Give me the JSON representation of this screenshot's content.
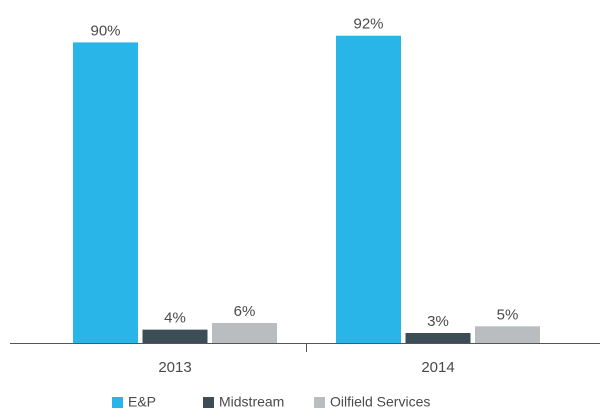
{
  "chart_data": {
    "type": "bar",
    "categories": [
      "2013",
      "2014"
    ],
    "series": [
      {
        "name": "E&P",
        "color": "#29b5e8",
        "values": [
          90,
          92
        ],
        "value_labels": [
          "90%",
          "92%"
        ]
      },
      {
        "name": "Midstream",
        "color": "#3d4d58",
        "values": [
          4,
          3
        ],
        "value_labels": [
          "4%",
          "3%"
        ]
      },
      {
        "name": "Oilfield Services",
        "color": "#b9bdc0",
        "values": [
          6,
          5
        ],
        "value_labels": [
          "6%",
          "5%"
        ]
      }
    ],
    "ylim": [
      0,
      100
    ],
    "legend": "bottom"
  }
}
